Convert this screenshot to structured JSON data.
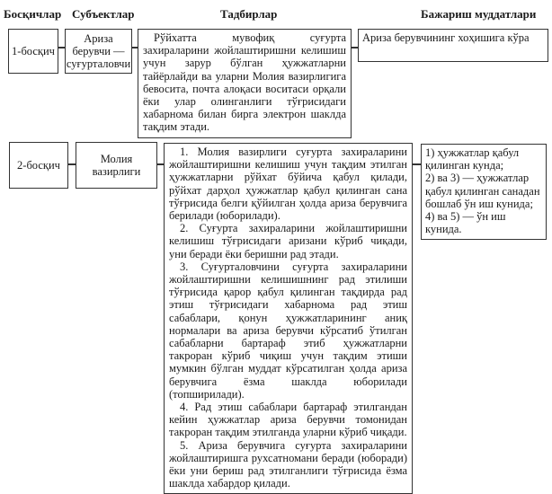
{
  "headers": {
    "stages": "Босқичлар",
    "subjects": "Субъектлар",
    "actions": "Тадбирлар",
    "deadlines": "Бажариш муддатлари"
  },
  "rows": [
    {
      "stage": "1-босқич",
      "subject": "Ариза берувчи — суғурталовчи",
      "actions": [
        "Рўйхатта мувофиқ суғурта захираларини жойлаштиришни келишиш учун зарур бўлган ҳужжатларни тайёрлайди ва уларни Молия вазирлигига бевосита, почта алоқаси воситаси орқали ёки улар олинганлиги тўғрисидаги хабарнома билан бирга электрон шаклда тақдим этади."
      ],
      "deadline": [
        "Ариза берувчининг хоҳишига кўра"
      ]
    },
    {
      "stage": "2-босқич",
      "subject": "Молия вазирлиги",
      "actions": [
        "1. Молия вазирлиги суғурта захираларини жойлаштиришни келишиш учун тақдим этилган ҳужжатларни рўйхат бўйича қабул қилади, рўйхат дарҳол ҳужжатлар қабул қилинган сана тўғрисида белги қўйилган ҳолда ариза берувчига берилади (юборилади).",
        "2. Суғурта захираларини жойлаштиришни келишиш тўғрисидаги аризани кўриб чиқади, уни беради ёки беришни рад этади.",
        "3. Суғурталовчини суғурта захираларини жойлаштиришни келишишнинг рад этилиши тўғрисида қарор қабул қилинган тақдирда рад этиш тўғрисидаги хабарнома рад этиш сабаблари, қонун ҳужжатларининг аниқ нормалари ва ариза берувчи кўрсатиб ўтилган сабабларни бартараф этиб ҳужжатларни такроран кўриб чиқиш учун тақдим этиши мумкин бўлган муддат кўрсатилган ҳолда ариза берувчига ёзма шаклда юборилади (топширилади).",
        "4. Рад этиш сабаблари бартараф этилгандан кейин ҳужжатлар ариза берувчи томонидан такроран тақдим этилганда уларни кўриб чиқади.",
        "5. Ариза берувчига суғурта захираларини жойлаштиришга рухсатномани беради (юборади) ёки уни бериш рад этилганлиги тўғрисида ёзма шаклда хабардор қилади."
      ],
      "deadline": [
        "1) ҳужжатлар қабул қилинган кунда;",
        "2) ва 3) — ҳужжатлар қабул қилинган санадан бошлаб ўн иш кунида;",
        "4) ва 5) — ўн иш кунида."
      ]
    }
  ]
}
